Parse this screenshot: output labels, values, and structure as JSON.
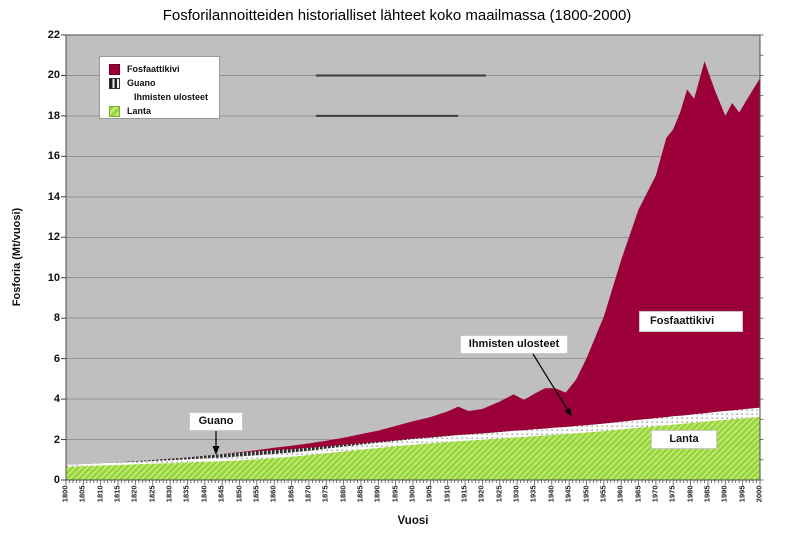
{
  "page": {
    "title": "Fosforilannoitteiden historialliset lähteet koko maailmassa (1800-2000)"
  },
  "legend": {
    "items": [
      {
        "label": "Fosfaattikivi",
        "swatch": "solid-crimson"
      },
      {
        "label": "Guano",
        "swatch": "dark-stripes"
      },
      {
        "label": "Ihmisten ulosteet",
        "swatch": "none"
      },
      {
        "label": "Lanta",
        "swatch": "green-hatch"
      }
    ]
  },
  "annotations": {
    "guano": "Guano",
    "human": "Ihmisten ulosteet",
    "phosphate": "Fosfaattikivi",
    "manure": "Lanta"
  },
  "colors": {
    "phosphate_red": "#9B0038",
    "manure_green_light": "#C9E87B",
    "manure_green_stripe": "#92D63A",
    "guano_dark": "#2F2F2F",
    "human_band_white": "#FBFBFB",
    "plot_background": "#BFBFBF",
    "gridline": "#949494",
    "dark_gridline_segment": "#3D3D3D",
    "axis": "#4C4C4C"
  },
  "chart_data": {
    "type": "area",
    "stacked": true,
    "title": "Fosforilannoitteiden historialliset lähteet koko maailmassa (1800-2000)",
    "xlabel": "Vuosi",
    "ylabel": "Fosforia (Mt/vuosi)",
    "xlim": [
      1800,
      2000
    ],
    "ylim": [
      0,
      22
    ],
    "grid": "horizontal",
    "legend_position": "top-left",
    "y_ticks": [
      0,
      2,
      4,
      6,
      8,
      10,
      12,
      14,
      16,
      18,
      20,
      22
    ],
    "x_ticks": [
      1800,
      1805,
      1810,
      1815,
      1820,
      1825,
      1830,
      1835,
      1840,
      1845,
      1850,
      1855,
      1860,
      1865,
      1870,
      1875,
      1880,
      1885,
      1890,
      1895,
      1900,
      1905,
      1910,
      1915,
      1920,
      1925,
      1930,
      1935,
      1940,
      1945,
      1950,
      1955,
      1960,
      1965,
      1970,
      1975,
      1980,
      1985,
      1990,
      1995,
      2000
    ],
    "x": [
      1800,
      1805,
      1810,
      1815,
      1820,
      1825,
      1830,
      1835,
      1840,
      1845,
      1850,
      1855,
      1860,
      1865,
      1870,
      1875,
      1880,
      1885,
      1890,
      1895,
      1900,
      1905,
      1910,
      1913,
      1916,
      1920,
      1925,
      1929,
      1932,
      1935,
      1938,
      1941,
      1944,
      1947,
      1950,
      1955,
      1960,
      1965,
      1970,
      1973,
      1975,
      1977,
      1979,
      1981,
      1984,
      1987,
      1990,
      1992,
      1994,
      1997,
      2000
    ],
    "series": [
      {
        "name": "Lanta",
        "fill": "green-hatch",
        "values": [
          0.65,
          0.68,
          0.71,
          0.74,
          0.77,
          0.8,
          0.83,
          0.86,
          0.9,
          0.93,
          0.97,
          1.02,
          1.08,
          1.15,
          1.23,
          1.32,
          1.41,
          1.5,
          1.58,
          1.66,
          1.74,
          1.81,
          1.88,
          1.92,
          1.95,
          1.99,
          2.05,
          2.1,
          2.13,
          2.17,
          2.2,
          2.24,
          2.27,
          2.31,
          2.35,
          2.42,
          2.5,
          2.58,
          2.66,
          2.71,
          2.74,
          2.77,
          2.8,
          2.83,
          2.88,
          2.93,
          2.97,
          3.0,
          3.03,
          3.08,
          3.12
        ]
      },
      {
        "name": "Ihmisten ulosteet",
        "fill": "white-dotted",
        "values": [
          0.1,
          0.11,
          0.12,
          0.13,
          0.13,
          0.14,
          0.15,
          0.16,
          0.17,
          0.18,
          0.19,
          0.2,
          0.21,
          0.21,
          0.22,
          0.23,
          0.24,
          0.25,
          0.26,
          0.27,
          0.28,
          0.28,
          0.29,
          0.3,
          0.3,
          0.31,
          0.32,
          0.33,
          0.33,
          0.34,
          0.34,
          0.35,
          0.35,
          0.36,
          0.36,
          0.37,
          0.38,
          0.39,
          0.4,
          0.4,
          0.41,
          0.41,
          0.41,
          0.42,
          0.42,
          0.43,
          0.44,
          0.44,
          0.44,
          0.45,
          0.45
        ]
      },
      {
        "name": "Guano",
        "fill": "dark-stripes",
        "values": [
          0,
          0,
          0,
          0.01,
          0.03,
          0.05,
          0.07,
          0.09,
          0.13,
          0.17,
          0.2,
          0.2,
          0.19,
          0.17,
          0.14,
          0.11,
          0.09,
          0.07,
          0.05,
          0.04,
          0.03,
          0.02,
          0.02,
          0.01,
          0.01,
          0.01,
          0.01,
          0,
          0,
          0,
          0,
          0,
          0,
          0,
          0,
          0,
          0,
          0,
          0,
          0,
          0,
          0,
          0,
          0,
          0,
          0,
          0,
          0,
          0,
          0,
          0
        ]
      },
      {
        "name": "Fosfaattikivi",
        "fill": "solid-crimson",
        "values": [
          0,
          0,
          0,
          0,
          0,
          0,
          0,
          0,
          0,
          0,
          0.02,
          0.06,
          0.11,
          0.16,
          0.22,
          0.28,
          0.35,
          0.45,
          0.55,
          0.7,
          0.85,
          1.0,
          1.2,
          1.4,
          1.15,
          1.2,
          1.5,
          1.8,
          1.5,
          1.75,
          2.0,
          1.95,
          1.7,
          2.3,
          3.3,
          5.3,
          8.0,
          10.4,
          12.0,
          13.8,
          14.2,
          15.0,
          16.1,
          15.6,
          17.4,
          15.9,
          14.6,
          15.2,
          14.7,
          15.5,
          16.3
        ]
      }
    ],
    "layout": {
      "dark_segments": [
        {
          "value": 20,
          "x1": 1872,
          "x2": 1921
        },
        {
          "value": 18,
          "x1": 1872,
          "x2": 1913
        }
      ]
    }
  }
}
